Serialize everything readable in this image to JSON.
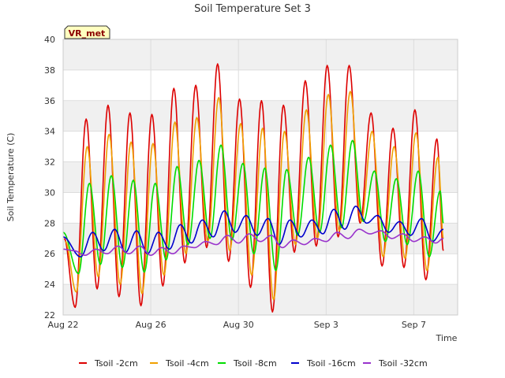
{
  "chart_data": {
    "type": "line",
    "title": "Soil Temperature Set 3",
    "badge": "VR_met",
    "xlabel": "Time",
    "ylabel": "Soil Temperature (C)",
    "ylim": [
      22,
      40
    ],
    "yticks": [
      22,
      24,
      26,
      28,
      30,
      32,
      34,
      36,
      38,
      40
    ],
    "xlim_days": [
      0,
      18
    ],
    "xticks": [
      {
        "day": 0,
        "label": "Aug 22"
      },
      {
        "day": 4,
        "label": "Aug 26"
      },
      {
        "day": 8,
        "label": "Aug 30"
      },
      {
        "day": 12,
        "label": "Sep 3"
      },
      {
        "day": 16,
        "label": "Sep 7"
      }
    ],
    "grid": true,
    "legend_position": "bottom",
    "series": [
      {
        "name": "Tsoil -2cm",
        "color": "#dd0000",
        "points": [
          [
            0.05,
            27.0
          ],
          [
            0.55,
            22.5
          ],
          [
            1.05,
            34.8
          ],
          [
            1.55,
            23.7
          ],
          [
            2.05,
            35.7
          ],
          [
            2.55,
            23.2
          ],
          [
            3.05,
            35.2
          ],
          [
            3.55,
            22.6
          ],
          [
            4.05,
            35.1
          ],
          [
            4.55,
            23.9
          ],
          [
            5.05,
            36.8
          ],
          [
            5.55,
            25.4
          ],
          [
            6.05,
            37.0
          ],
          [
            6.55,
            26.4
          ],
          [
            7.05,
            38.4
          ],
          [
            7.55,
            25.5
          ],
          [
            8.05,
            36.1
          ],
          [
            8.55,
            23.8
          ],
          [
            9.05,
            36.0
          ],
          [
            9.55,
            22.2
          ],
          [
            10.05,
            35.7
          ],
          [
            10.55,
            26.1
          ],
          [
            11.05,
            37.3
          ],
          [
            11.55,
            26.5
          ],
          [
            12.05,
            38.3
          ],
          [
            12.55,
            27.1
          ],
          [
            13.05,
            38.3
          ],
          [
            13.55,
            28.0
          ],
          [
            14.05,
            35.2
          ],
          [
            14.55,
            25.2
          ],
          [
            15.05,
            34.2
          ],
          [
            15.55,
            25.1
          ],
          [
            16.05,
            35.4
          ],
          [
            16.55,
            24.3
          ],
          [
            17.05,
            33.5
          ],
          [
            17.35,
            26.2
          ]
        ]
      },
      {
        "name": "Tsoil -4cm",
        "color": "#f0a000",
        "points": [
          [
            0.1,
            26.8
          ],
          [
            0.6,
            23.5
          ],
          [
            1.1,
            33.0
          ],
          [
            1.6,
            24.5
          ],
          [
            2.1,
            33.8
          ],
          [
            2.6,
            24.0
          ],
          [
            3.1,
            33.3
          ],
          [
            3.6,
            23.4
          ],
          [
            4.1,
            33.2
          ],
          [
            4.6,
            24.6
          ],
          [
            5.1,
            34.6
          ],
          [
            5.6,
            26.0
          ],
          [
            6.1,
            34.9
          ],
          [
            6.6,
            26.8
          ],
          [
            7.1,
            36.2
          ],
          [
            7.6,
            26.2
          ],
          [
            8.1,
            34.5
          ],
          [
            8.6,
            24.6
          ],
          [
            9.1,
            34.2
          ],
          [
            9.6,
            23.0
          ],
          [
            10.1,
            34.0
          ],
          [
            10.6,
            26.6
          ],
          [
            11.1,
            35.4
          ],
          [
            11.6,
            27.0
          ],
          [
            12.1,
            36.4
          ],
          [
            12.6,
            27.5
          ],
          [
            13.1,
            36.6
          ],
          [
            13.6,
            28.1
          ],
          [
            14.1,
            34.0
          ],
          [
            14.6,
            25.8
          ],
          [
            15.1,
            33.0
          ],
          [
            15.6,
            25.7
          ],
          [
            16.1,
            33.9
          ],
          [
            16.6,
            24.9
          ],
          [
            17.1,
            32.3
          ],
          [
            17.35,
            27.0
          ]
        ]
      },
      {
        "name": "Tsoil -8cm",
        "color": "#00dd00",
        "points": [
          [
            0.0,
            27.4
          ],
          [
            0.7,
            24.7
          ],
          [
            1.2,
            30.6
          ],
          [
            1.7,
            25.3
          ],
          [
            2.2,
            31.1
          ],
          [
            2.7,
            25.1
          ],
          [
            3.2,
            30.8
          ],
          [
            3.7,
            24.8
          ],
          [
            4.2,
            30.6
          ],
          [
            4.7,
            25.6
          ],
          [
            5.2,
            31.7
          ],
          [
            5.7,
            26.6
          ],
          [
            6.2,
            32.1
          ],
          [
            6.7,
            27.0
          ],
          [
            7.2,
            33.1
          ],
          [
            7.7,
            26.9
          ],
          [
            8.2,
            31.9
          ],
          [
            8.7,
            26.0
          ],
          [
            9.2,
            31.6
          ],
          [
            9.7,
            24.9
          ],
          [
            10.2,
            31.5
          ],
          [
            10.7,
            27.2
          ],
          [
            11.2,
            32.3
          ],
          [
            11.7,
            27.4
          ],
          [
            12.2,
            33.1
          ],
          [
            12.7,
            27.7
          ],
          [
            13.2,
            33.4
          ],
          [
            13.7,
            28.1
          ],
          [
            14.2,
            31.4
          ],
          [
            14.7,
            26.8
          ],
          [
            15.2,
            30.9
          ],
          [
            15.7,
            26.6
          ],
          [
            16.2,
            31.4
          ],
          [
            16.7,
            25.8
          ],
          [
            17.2,
            30.1
          ],
          [
            17.35,
            28.0
          ]
        ]
      },
      {
        "name": "Tsoil -16cm",
        "color": "#0000cc",
        "points": [
          [
            0.0,
            27.1
          ],
          [
            0.8,
            25.8
          ],
          [
            1.35,
            27.4
          ],
          [
            1.85,
            26.2
          ],
          [
            2.35,
            27.6
          ],
          [
            2.85,
            26.1
          ],
          [
            3.35,
            27.5
          ],
          [
            3.85,
            26.0
          ],
          [
            4.35,
            27.4
          ],
          [
            4.85,
            26.3
          ],
          [
            5.35,
            27.9
          ],
          [
            5.85,
            26.7
          ],
          [
            6.35,
            28.2
          ],
          [
            6.85,
            27.1
          ],
          [
            7.35,
            28.8
          ],
          [
            7.85,
            27.4
          ],
          [
            8.35,
            28.5
          ],
          [
            8.85,
            27.2
          ],
          [
            9.35,
            28.3
          ],
          [
            9.85,
            26.6
          ],
          [
            10.35,
            28.2
          ],
          [
            10.85,
            27.1
          ],
          [
            11.35,
            28.2
          ],
          [
            11.85,
            27.3
          ],
          [
            12.35,
            28.9
          ],
          [
            12.85,
            27.6
          ],
          [
            13.35,
            29.1
          ],
          [
            13.85,
            28.0
          ],
          [
            14.35,
            28.5
          ],
          [
            14.85,
            27.4
          ],
          [
            15.35,
            28.1
          ],
          [
            15.85,
            27.2
          ],
          [
            16.35,
            28.3
          ],
          [
            16.85,
            26.8
          ],
          [
            17.35,
            27.6
          ]
        ]
      },
      {
        "name": "Tsoil -32cm",
        "color": "#9933cc",
        "points": [
          [
            0.0,
            26.3
          ],
          [
            0.5,
            26.2
          ],
          [
            1.0,
            25.9
          ],
          [
            1.5,
            26.3
          ],
          [
            2.0,
            26.0
          ],
          [
            2.5,
            26.5
          ],
          [
            3.0,
            26.0
          ],
          [
            3.5,
            26.5
          ],
          [
            4.0,
            25.9
          ],
          [
            4.5,
            26.4
          ],
          [
            5.0,
            26.0
          ],
          [
            5.5,
            26.5
          ],
          [
            6.0,
            26.4
          ],
          [
            6.5,
            26.8
          ],
          [
            7.0,
            26.6
          ],
          [
            7.5,
            27.2
          ],
          [
            8.0,
            26.7
          ],
          [
            8.5,
            27.3
          ],
          [
            9.0,
            26.8
          ],
          [
            9.5,
            27.2
          ],
          [
            10.0,
            26.4
          ],
          [
            10.5,
            26.9
          ],
          [
            11.0,
            26.6
          ],
          [
            11.5,
            27.0
          ],
          [
            12.0,
            26.8
          ],
          [
            12.5,
            27.4
          ],
          [
            13.0,
            27.0
          ],
          [
            13.5,
            27.6
          ],
          [
            14.0,
            27.3
          ],
          [
            14.5,
            27.5
          ],
          [
            15.0,
            27.0
          ],
          [
            15.5,
            27.3
          ],
          [
            16.0,
            26.8
          ],
          [
            16.5,
            27.1
          ],
          [
            17.0,
            26.7
          ],
          [
            17.35,
            27.0
          ]
        ]
      }
    ]
  }
}
